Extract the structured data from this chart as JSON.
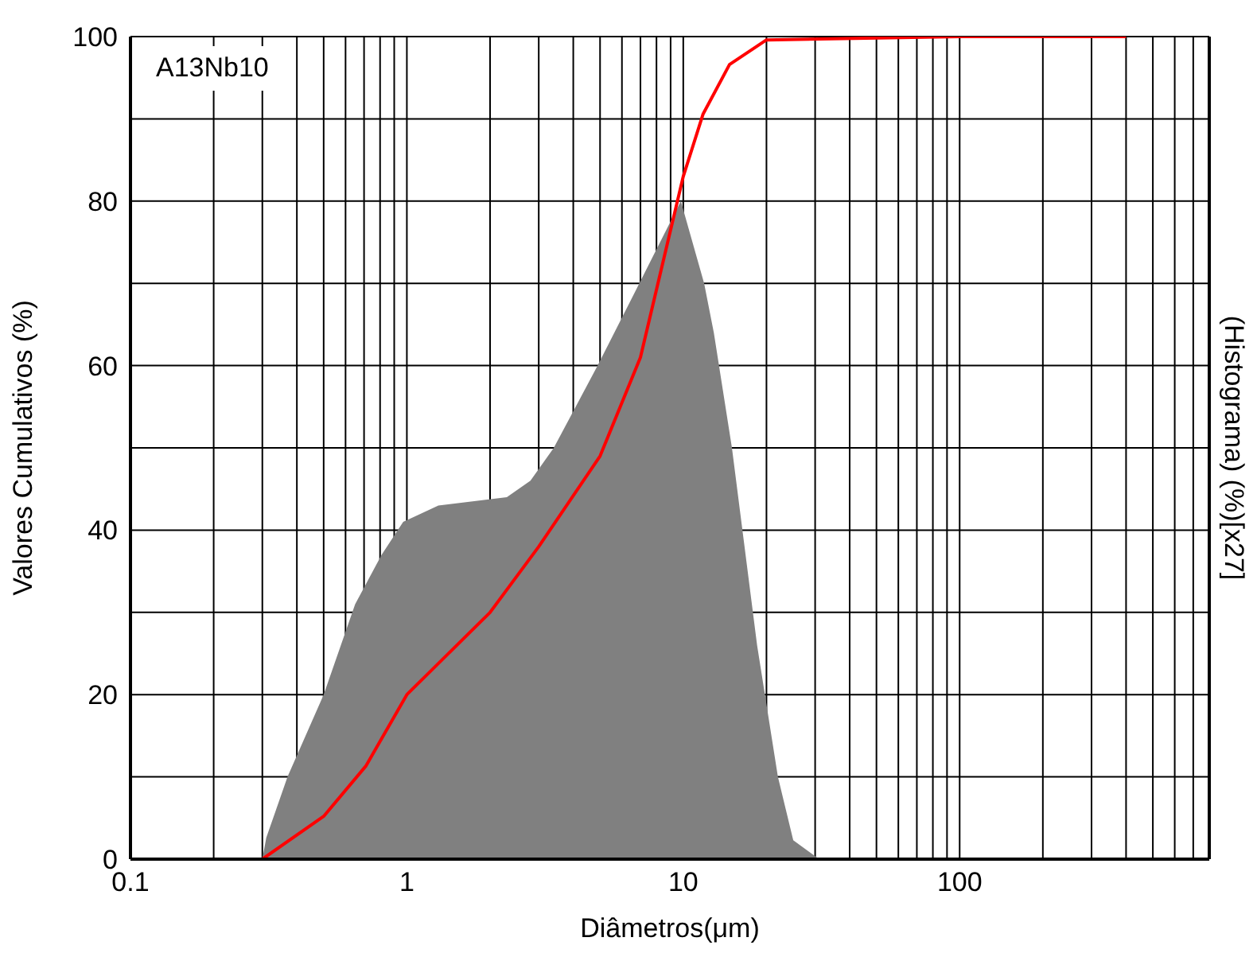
{
  "chart_data": {
    "type": "line",
    "xlabel": "Diâmetros(μm)",
    "ylabel": "Valores Cumulativos (%)",
    "y2label": "(Histograma) (%)[x27]",
    "annotations": [
      "A13Nb10"
    ],
    "log": "x",
    "grid": true,
    "legend": false,
    "marker": "none",
    "line_style": "solid",
    "xlim": [
      0.1,
      800
    ],
    "ylim": [
      0,
      100
    ],
    "xticks": [
      0.1,
      {
        "value": 0.2,
        "label": null
      },
      {
        "value": 0.3,
        "label": null
      },
      {
        "value": 0.4,
        "label": null
      },
      {
        "value": 0.5,
        "label": null
      },
      {
        "value": 0.6,
        "label": null
      },
      {
        "value": 0.7,
        "label": null
      },
      {
        "value": 0.8,
        "label": null
      },
      {
        "value": 0.9,
        "label": null
      },
      1,
      {
        "value": 2,
        "label": null
      },
      {
        "value": 3,
        "label": null
      },
      {
        "value": 4,
        "label": null
      },
      {
        "value": 5,
        "label": null
      },
      {
        "value": 6,
        "label": null
      },
      {
        "value": 7,
        "label": null
      },
      {
        "value": 8,
        "label": null
      },
      {
        "value": 9,
        "label": null
      },
      10,
      {
        "value": 20,
        "label": null
      },
      {
        "value": 30,
        "label": null
      },
      {
        "value": 40,
        "label": null
      },
      {
        "value": 50,
        "label": null
      },
      {
        "value": 60,
        "label": null
      },
      {
        "value": 70,
        "label": null
      },
      {
        "value": 80,
        "label": null
      },
      {
        "value": 90,
        "label": null
      },
      100,
      {
        "value": 200,
        "label": null
      },
      {
        "value": 300,
        "label": null
      },
      {
        "value": 400,
        "label": null
      },
      {
        "value": 500,
        "label": null
      },
      {
        "value": 600,
        "label": null
      },
      {
        "value": 700,
        "label": null
      }
    ],
    "yticks": [
      0,
      {
        "value": 10,
        "label": null
      },
      20,
      {
        "value": 30,
        "label": null
      },
      40,
      {
        "value": 50,
        "label": null
      },
      60,
      {
        "value": 70,
        "label": null
      },
      80,
      {
        "value": 90,
        "label": null
      },
      100
    ],
    "series": [
      {
        "type": "area",
        "color": "#808080",
        "x": [
          0.3,
          0.31,
          0.37,
          0.5,
          0.65,
          0.81,
          0.97,
          1.3,
          2.3,
          2.8,
          3.4,
          4.9,
          6.7,
          9.8,
          11.9,
          12.9,
          15,
          18.5,
          22,
          25,
          31
        ],
        "values": [
          0,
          2.6,
          10,
          20,
          31,
          37,
          41,
          43,
          44,
          46,
          50,
          60,
          69,
          80,
          70,
          64,
          50,
          26,
          10,
          2.3,
          0
        ]
      },
      {
        "type": "line",
        "color": "#ff0000",
        "x": [
          0.3,
          0.5,
          0.71,
          1,
          2,
          3,
          5,
          7,
          10,
          11.8,
          14.7,
          20,
          100,
          400
        ],
        "values": [
          0,
          5.2,
          11.3,
          20,
          30,
          38,
          49,
          61,
          83,
          90.6,
          96.6,
          99.6,
          100,
          100
        ]
      }
    ]
  }
}
